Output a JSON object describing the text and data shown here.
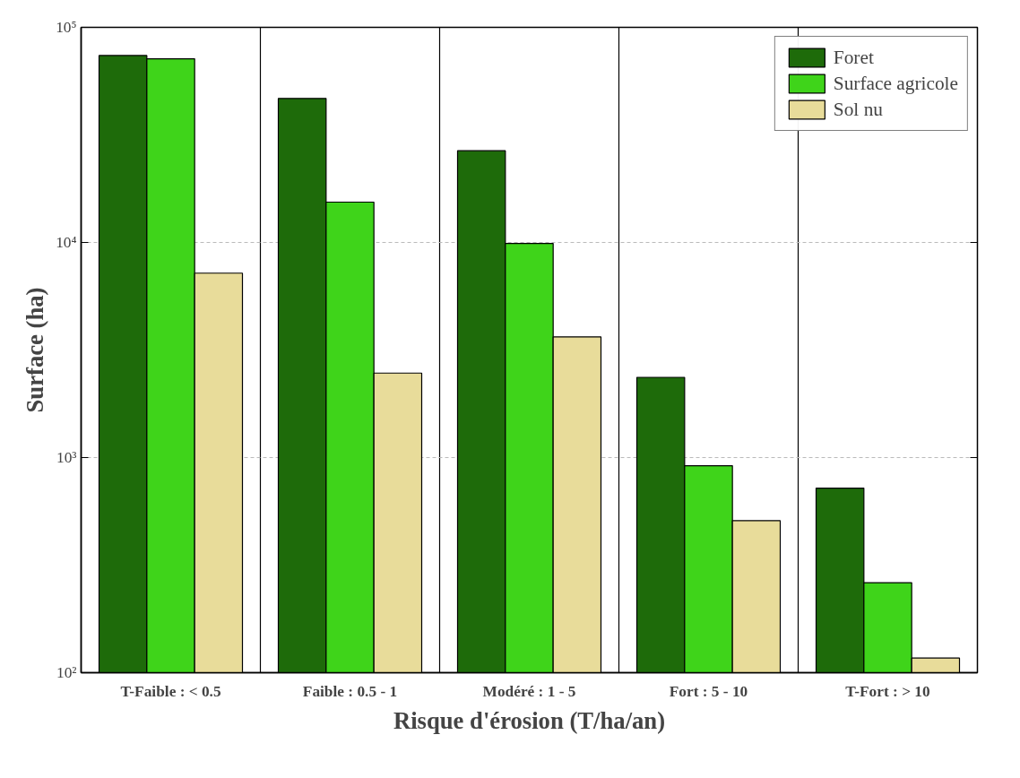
{
  "chart_data": {
    "type": "bar",
    "xlabel": "Risque d'érosion (T/ha/an)",
    "ylabel": "Surface (ha)",
    "categories": [
      "T-Faible : < 0.5",
      "Faible : 0.5 - 1",
      "Modéré : 1 - 5",
      "Fort : 5 - 10",
      "T-Fort : > 10"
    ],
    "series": [
      {
        "name": "Foret",
        "color": "#1e6b0a",
        "values": [
          74000,
          46700,
          26700,
          2360,
          721
        ]
      },
      {
        "name": "Surface agricole",
        "color": "#3fd41a",
        "values": [
          71400,
          15400,
          9900,
          917,
          262
        ]
      },
      {
        "name": "Sol nu",
        "color": "#e8dc9a",
        "values": [
          7200,
          2470,
          3640,
          509,
          117
        ]
      }
    ],
    "log": true,
    "ylim": [
      100,
      100000
    ],
    "yticks": [
      {
        "value": 100,
        "label": "10²"
      },
      {
        "value": 1000,
        "label": "10³"
      },
      {
        "value": 10000,
        "label": "10⁴"
      },
      {
        "value": 100000,
        "label": "10⁵"
      }
    ],
    "grid": true,
    "legend": "top right"
  }
}
